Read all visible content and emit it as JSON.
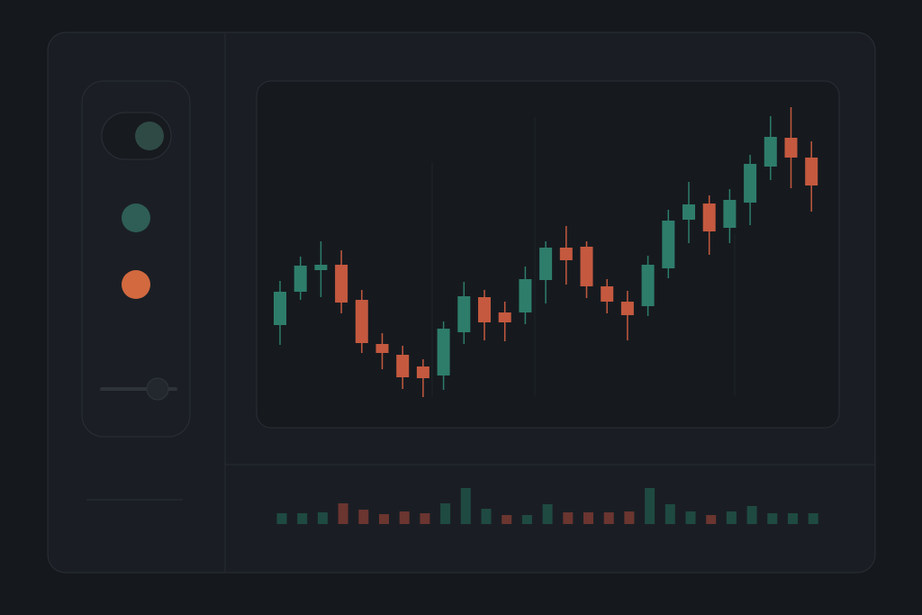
{
  "chart_data": [
    {
      "type": "candlestick",
      "ylim": [
        0,
        40
      ],
      "up_color": "#2e7d6b",
      "down_color": "#c4593f",
      "open": [
        11.9,
        15.6,
        18.0,
        18.6,
        14.7,
        9.8,
        8.6,
        7.3,
        6.3,
        11.1,
        15.0,
        13.3,
        13.3,
        16.9,
        20.5,
        20.6,
        16.2,
        14.5,
        14.0,
        18.2,
        23.6,
        25.4,
        22.7,
        25.5,
        29.5,
        32.7,
        30.5
      ],
      "high": [
        16.8,
        19.5,
        21.2,
        20.2,
        15.8,
        11.0,
        9.6,
        8.1,
        12.3,
        16.7,
        15.8,
        14.5,
        18.4,
        21.2,
        22.9,
        21.2,
        17.0,
        15.7,
        19.6,
        24.7,
        27.8,
        26.3,
        27.0,
        30.8,
        35.1,
        36.1,
        32.3
      ],
      "low": [
        9.7,
        14.7,
        15.0,
        13.2,
        8.8,
        7.0,
        4.8,
        3.9,
        4.7,
        9.8,
        10.2,
        10.1,
        12.0,
        14.3,
        16.4,
        14.9,
        13.2,
        10.2,
        12.9,
        17.1,
        21.0,
        19.7,
        21.0,
        23.0,
        28.0,
        27.1,
        24.5
      ],
      "close": [
        15.6,
        18.5,
        18.6,
        14.4,
        9.9,
        8.8,
        6.1,
        6.0,
        11.5,
        15.1,
        12.2,
        12.2,
        17.0,
        20.5,
        19.1,
        16.2,
        14.5,
        13.0,
        18.6,
        23.5,
        25.3,
        22.3,
        25.8,
        29.8,
        32.8,
        30.5,
        27.4
      ]
    },
    {
      "type": "bar",
      "ylim": [
        0,
        40
      ],
      "values": [
        12,
        12,
        13,
        23,
        16,
        11,
        14,
        12,
        23,
        40,
        17,
        10,
        10,
        22,
        13,
        13,
        13,
        14,
        40,
        22,
        14,
        10,
        14,
        20,
        12,
        12,
        12
      ],
      "colors": [
        "#1f4a42",
        "#1f4a42",
        "#1f4a42",
        "#6b3530",
        "#6b3530",
        "#6b3530",
        "#6b3530",
        "#6b3530",
        "#1f4a42",
        "#1f4a42",
        "#1f4a42",
        "#6b3530",
        "#1f4a42",
        "#1f4a42",
        "#6b3530",
        "#6b3530",
        "#6b3530",
        "#6b3530",
        "#1f4a42",
        "#1f4a42",
        "#1f4a42",
        "#6b3530",
        "#1f4a42",
        "#1f4a42",
        "#1f4a42",
        "#1f4a42",
        "#1f4a42"
      ]
    }
  ]
}
